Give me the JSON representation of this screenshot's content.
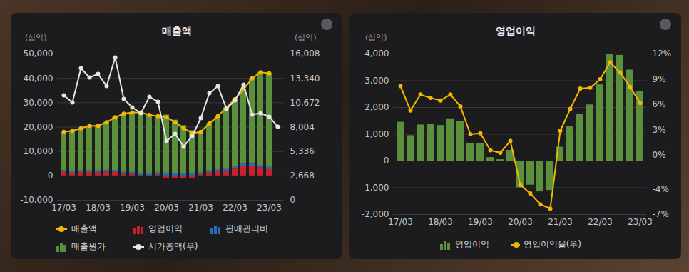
{
  "chart_data": [
    {
      "type": "bar",
      "title": "매출액",
      "stacked": true,
      "grid": true,
      "legend": "bottom",
      "y_label": "(십억)",
      "y2_label": "(십억)",
      "categories": [
        "17/03",
        null,
        null,
        null,
        "18/03",
        null,
        null,
        null,
        "19/03",
        null,
        null,
        null,
        "20/03",
        null,
        null,
        null,
        "21/03",
        null,
        null,
        null,
        "22/03",
        null,
        null,
        null,
        "23/03",
        null
      ],
      "ylim": [
        -10000,
        50000
      ],
      "yticks": [
        {
          "value": -10000,
          "label": "-10,000"
        },
        0,
        {
          "value": 10000,
          "label": "10,000"
        },
        {
          "value": 20000,
          "label": "20,000"
        },
        {
          "value": 30000,
          "label": "30,000"
        },
        {
          "value": 40000,
          "label": "40,000"
        },
        {
          "value": 50000,
          "label": "50,000"
        }
      ],
      "y2lim": [
        0,
        16008
      ],
      "y2ticks": [
        0,
        {
          "value": 2668,
          "label": "2,668"
        },
        {
          "value": 5336,
          "label": "5,336"
        },
        {
          "value": 8004,
          "label": "8,004"
        },
        {
          "value": 10672,
          "label": "10,672"
        },
        {
          "value": 13340,
          "label": "13,340"
        },
        {
          "value": 16008,
          "label": "16,008"
        }
      ],
      "series": [
        {
          "name": "매출액",
          "type": "line",
          "marker": "circle",
          "color": "#f2b705",
          "values": [
            18000,
            18500,
            19500,
            20500,
            20500,
            22000,
            24000,
            25500,
            26000,
            26000,
            25000,
            24500,
            24000,
            22000,
            19500,
            17500,
            18000,
            21500,
            24500,
            28000,
            31500,
            35500,
            40000,
            42500,
            42000,
            null
          ]
        },
        {
          "name": "영업이익",
          "type": "bar",
          "color": "#c8202c",
          "values": [
            1450,
            950,
            1350,
            1380,
            1330,
            1580,
            1480,
            650,
            650,
            130,
            50,
            400,
            -1000,
            -900,
            -1150,
            -1100,
            520,
            1300,
            1750,
            2100,
            2850,
            4000,
            3950,
            3400,
            2600,
            null
          ]
        },
        {
          "name": "판매관리비",
          "type": "bar",
          "color": "#2d6db5",
          "values": [
            700,
            700,
            720,
            740,
            750,
            760,
            780,
            800,
            800,
            810,
            820,
            830,
            820,
            800,
            780,
            770,
            770,
            780,
            800,
            820,
            850,
            880,
            900,
            930,
            950,
            null
          ]
        },
        {
          "name": "매출원가",
          "type": "bar",
          "color": "#5a8f3c",
          "values": [
            15850,
            16850,
            17430,
            18380,
            18420,
            19660,
            21740,
            24050,
            24550,
            25060,
            24130,
            23270,
            24180,
            22100,
            19870,
            17830,
            16710,
            19420,
            21950,
            25080,
            27800,
            30620,
            35150,
            38170,
            38450,
            null
          ]
        },
        {
          "name": "시가총액(우)",
          "type": "line",
          "marker": "circle",
          "color": "#e6e6e6",
          "axis": "y2",
          "values": [
            11480,
            10700,
            14450,
            13430,
            13820,
            12490,
            15620,
            11090,
            10150,
            9530,
            11320,
            10780,
            6480,
            7260,
            5860,
            7030,
            8980,
            11710,
            12490,
            10000,
            10930,
            12650,
            9370,
            9530,
            9140,
            8040
          ]
        }
      ]
    },
    {
      "type": "bar",
      "title": "영업이익",
      "grid": true,
      "legend": "bottom",
      "y_label": "(십억)",
      "categories": [
        "17/03",
        null,
        null,
        null,
        "18/03",
        null,
        null,
        null,
        "19/03",
        null,
        null,
        null,
        "20/03",
        null,
        null,
        null,
        "21/03",
        null,
        null,
        null,
        "22/03",
        null,
        null,
        null,
        "23/03"
      ],
      "ylim": [
        -2000,
        4000
      ],
      "yticks": [
        {
          "value": -2000,
          "label": "-2,000"
        },
        {
          "value": -1000,
          "label": "-1,000"
        },
        0,
        {
          "value": 1000,
          "label": "1,000"
        },
        {
          "value": 2000,
          "label": "2,000"
        },
        {
          "value": 3000,
          "label": "3,000"
        },
        {
          "value": 4000,
          "label": "4,000"
        }
      ],
      "y2lim": [
        -7,
        12
      ],
      "y2ticks": [
        {
          "value": -7,
          "label": "-7%"
        },
        {
          "value": -4,
          "label": "-4%"
        },
        {
          "value": 0,
          "label": "0%"
        },
        {
          "value": 3,
          "label": "3%"
        },
        {
          "value": 6,
          "label": "6%"
        },
        {
          "value": 9,
          "label": "9%"
        },
        {
          "value": 12,
          "label": "12%"
        }
      ],
      "series": [
        {
          "name": "영업이익",
          "type": "bar",
          "color": "#5a8f3c",
          "values": [
            1450,
            950,
            1350,
            1380,
            1330,
            1580,
            1480,
            650,
            650,
            130,
            50,
            400,
            -1000,
            -900,
            -1150,
            -1100,
            520,
            1300,
            1750,
            2100,
            2850,
            4000,
            3950,
            3400,
            2600
          ]
        },
        {
          "name": "영업이익율(우)",
          "type": "line",
          "marker": "circle",
          "color": "#f2b705",
          "axis": "y2",
          "values": [
            8.2,
            5.3,
            7.2,
            6.8,
            6.5,
            7.2,
            5.8,
            2.5,
            2.6,
            0.6,
            0.3,
            1.7,
            -3.5,
            -4.5,
            -5.8,
            -6.3,
            2.9,
            5.5,
            7.9,
            8.0,
            9.0,
            11.0,
            9.8,
            8.1,
            6.2
          ]
        }
      ]
    }
  ]
}
